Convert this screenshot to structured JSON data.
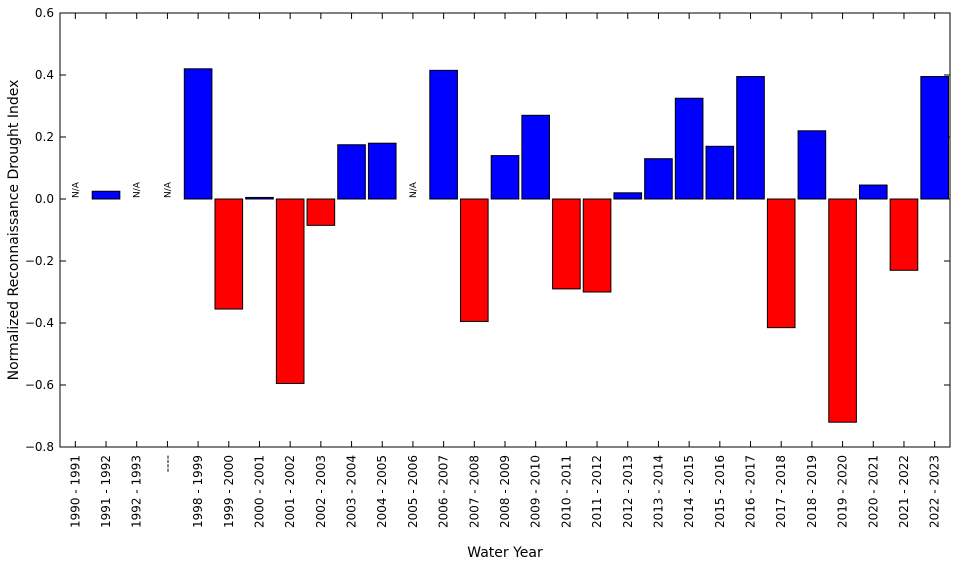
{
  "chart_data": {
    "type": "bar",
    "x_label": "Water Year",
    "y_label": "Normalized Reconnaissance Drought Index",
    "categories": [
      "1990 - 1991",
      "1991 - 1992",
      "1992 - 1993",
      "----",
      "1998 - 1999",
      "1999 - 2000",
      "2000 - 2001",
      "2001 - 2002",
      "2002 - 2003",
      "2003 - 2004",
      "2004 - 2005",
      "2005 - 2006",
      "2006 - 2007",
      "2007 - 2008",
      "2008 - 2009",
      "2009 - 2010",
      "2010 - 2011",
      "2011 - 2012",
      "2012 - 2013",
      "2013 - 2014",
      "2014 - 2015",
      "2015 - 2016",
      "2016 - 2017",
      "2017 - 2018",
      "2018 - 2019",
      "2019 - 2020",
      "2020 - 2021",
      "2021 - 2022",
      "2022 - 2023"
    ],
    "values": [
      null,
      0.025,
      null,
      null,
      0.42,
      -0.355,
      0.005,
      -0.595,
      -0.085,
      0.175,
      0.18,
      null,
      0.415,
      -0.395,
      0.14,
      0.27,
      -0.29,
      -0.3,
      0.02,
      0.13,
      0.325,
      0.17,
      0.395,
      -0.415,
      0.22,
      -0.72,
      0.045,
      -0.23,
      0.395
    ],
    "value_labels": [
      "N/A",
      null,
      "N/A",
      "N/A",
      null,
      null,
      null,
      null,
      null,
      null,
      null,
      "N/A",
      null,
      null,
      null,
      null,
      null,
      null,
      null,
      null,
      null,
      null,
      null,
      null,
      null,
      null,
      null,
      null,
      null
    ],
    "positive_color": "#0000ff",
    "negative_color": "#ff0000",
    "ylim": [
      -0.8,
      0.6
    ],
    "yticks": [
      {
        "value": -0.8,
        "label": "−0.8"
      },
      {
        "value": -0.6,
        "label": "−0.6"
      },
      {
        "value": -0.4,
        "label": "−0.4"
      },
      {
        "value": -0.2,
        "label": "−0.2"
      },
      {
        "value": 0,
        "label": "0.0"
      },
      0.2,
      0.4,
      0.6
    ],
    "grid": false
  }
}
